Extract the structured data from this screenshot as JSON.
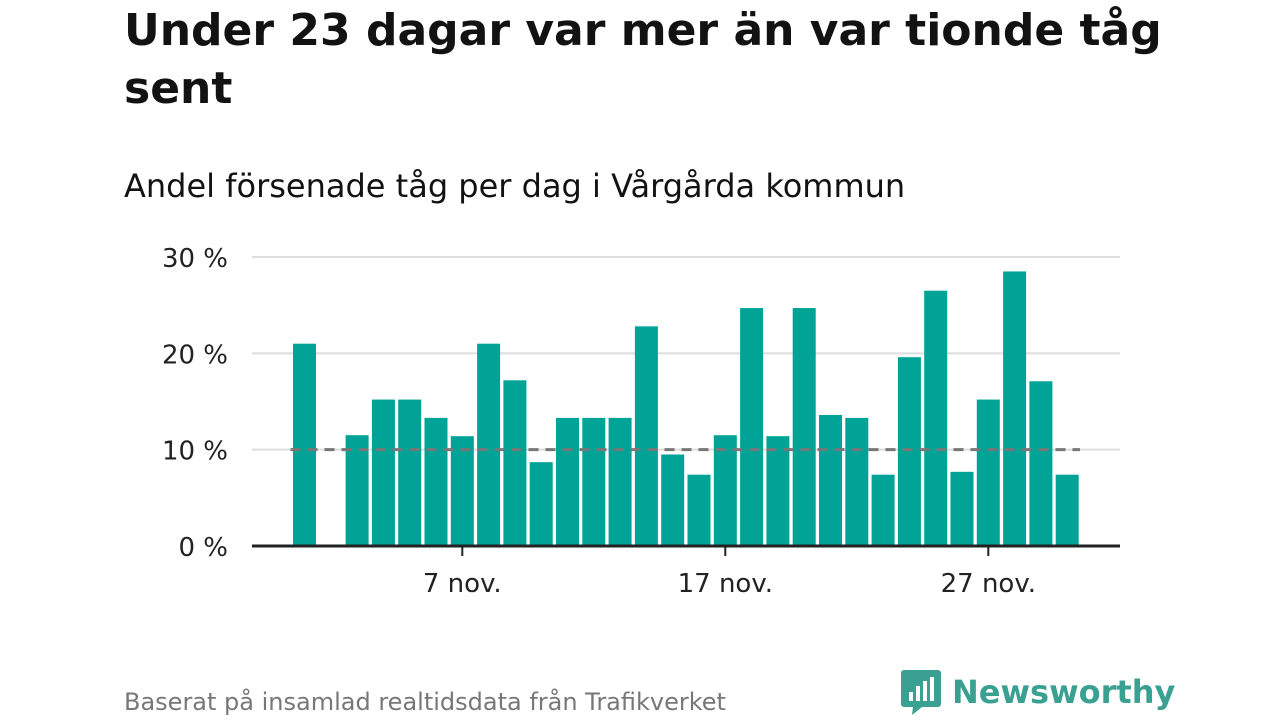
{
  "header": {
    "title": "Under 23 dagar var mer än var tionde tåg sent",
    "subtitle": "Andel försenade tåg per dag i Vårgårda kommun"
  },
  "footer": {
    "source": "Baserat på insamlad realtidsdata från Trafikverket",
    "brand": "Newsworthy"
  },
  "colors": {
    "bar": "#00a396",
    "reference_line": "#777777",
    "grid": "#dddddd",
    "axis": "#222222",
    "brand": "#3aa092"
  },
  "chart_data": {
    "type": "bar",
    "ylim": [
      0,
      30
    ],
    "y_ticks": [
      0,
      10,
      20,
      30
    ],
    "y_tick_labels": [
      "0 %",
      "10 %",
      "20 %",
      "30 %"
    ],
    "x_ticks": [
      {
        "day": 7,
        "label": "7 nov."
      },
      {
        "day": 17,
        "label": "17 nov."
      },
      {
        "day": 27,
        "label": "27 nov."
      }
    ],
    "x": [
      1,
      2,
      3,
      4,
      5,
      6,
      7,
      8,
      9,
      10,
      11,
      12,
      13,
      14,
      15,
      16,
      17,
      18,
      19,
      20,
      21,
      22,
      23,
      24,
      25,
      26,
      27,
      28,
      29,
      30
    ],
    "values": [
      21,
      null,
      11.5,
      15.2,
      15.2,
      13.3,
      11.4,
      21,
      17.2,
      8.7,
      13.3,
      13.3,
      13.3,
      22.8,
      9.5,
      7.4,
      11.5,
      24.7,
      11.4,
      24.7,
      13.6,
      13.3,
      7.4,
      19.6,
      26.5,
      7.7,
      15.2,
      28.5,
      17.1,
      7.4
    ],
    "reference_line": 10,
    "grid": true
  }
}
